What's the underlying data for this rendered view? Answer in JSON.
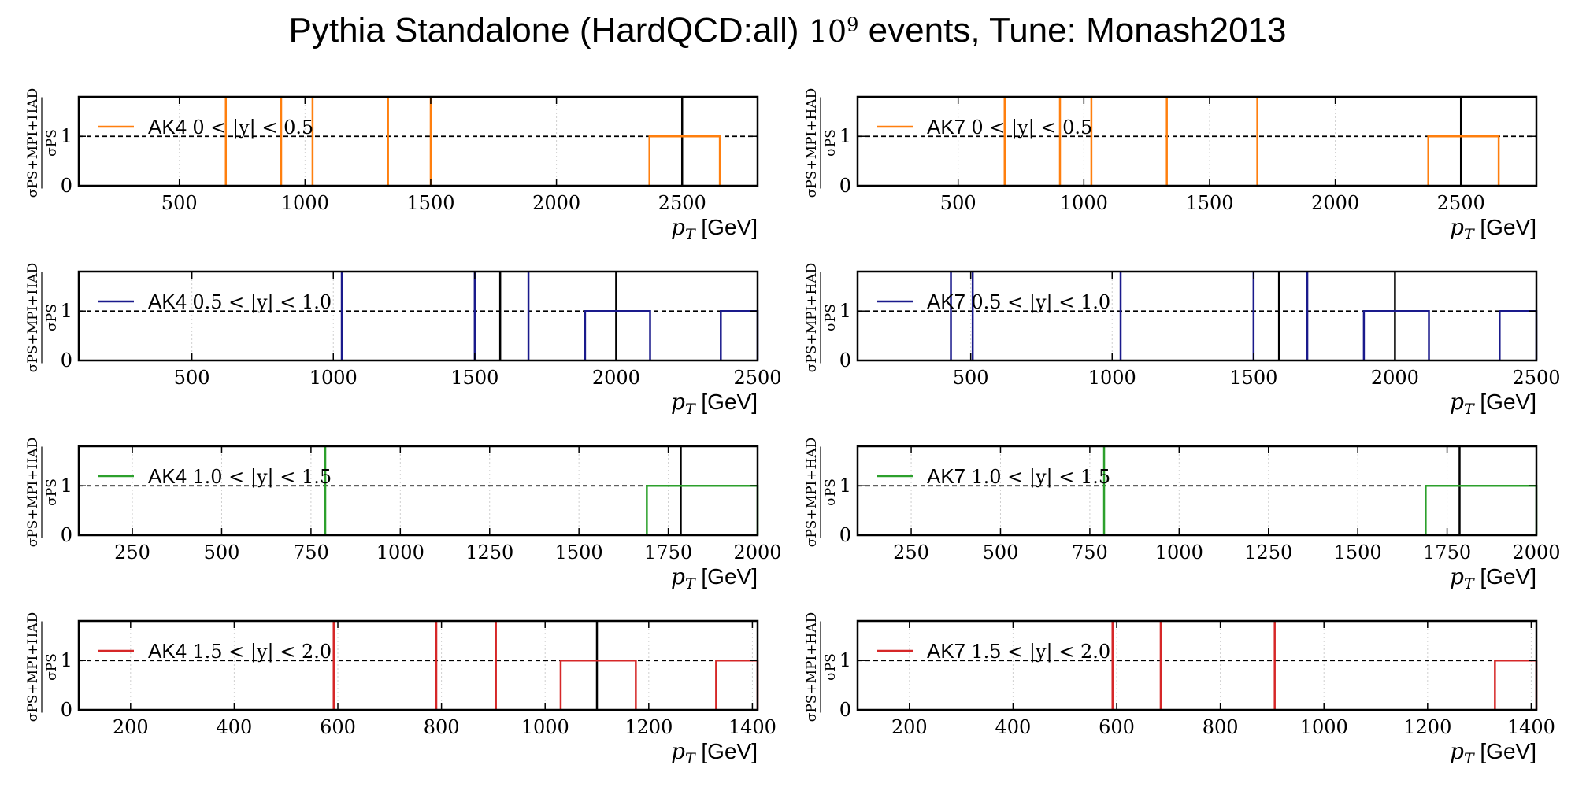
{
  "title": {
    "prefix": "Pythia Standalone (HardQCD:all) ",
    "events_base": "10",
    "events_exp": "9",
    "suffix": " events, Tune: Monash2013"
  },
  "colors": {
    "orange": "#ff7f0e",
    "navy": "#1a1a8c",
    "green": "#2ca02c",
    "red": "#d62728",
    "black": "#000000"
  },
  "ylabel": {
    "numerator": "σPS+MPI+HAD",
    "denominator": "σPS"
  },
  "xlabel": {
    "var": "pT",
    "unit": "[GeV]"
  },
  "chart_data": [
    {
      "type": "line",
      "algo": "AK4",
      "rapidity": "0 < |y| < 0.5",
      "color": "orange",
      "xlim": [
        100,
        2800
      ],
      "ylim": [
        0,
        1.8
      ],
      "xticks": [
        500,
        1000,
        1500,
        2000,
        2500
      ],
      "yticks": [
        0,
        1
      ],
      "spikes": [
        685,
        905,
        1030,
        1330,
        1500
      ],
      "steps": [
        [
          2370,
          2650
        ]
      ],
      "black_lines": [
        2500
      ],
      "ref": 1.0
    },
    {
      "type": "line",
      "algo": "AK7",
      "rapidity": "0 < |y| < 0.5",
      "color": "orange",
      "xlim": [
        100,
        2800
      ],
      "ylim": [
        0,
        1.8
      ],
      "xticks": [
        500,
        1000,
        1500,
        2000,
        2500
      ],
      "yticks": [
        0,
        1
      ],
      "spikes": [
        685,
        905,
        1030,
        1330,
        1690
      ],
      "steps": [
        [
          2370,
          2650
        ]
      ],
      "black_lines": [
        2500
      ],
      "ref": 1.0
    },
    {
      "type": "line",
      "algo": "AK4",
      "rapidity": "0.5 < |y| < 1.0",
      "color": "navy",
      "xlim": [
        100,
        2500
      ],
      "ylim": [
        0,
        1.8
      ],
      "xticks": [
        500,
        1000,
        1500,
        2000,
        2500
      ],
      "yticks": [
        0,
        1
      ],
      "spikes": [
        1030,
        1500,
        1690
      ],
      "steps": [
        [
          1890,
          2120
        ],
        [
          2370,
          2500
        ]
      ],
      "black_lines": [
        1590,
        2000
      ],
      "ref": 1.0
    },
    {
      "type": "line",
      "algo": "AK7",
      "rapidity": "0.5 < |y| < 1.0",
      "color": "navy",
      "xlim": [
        100,
        2500
      ],
      "ylim": [
        0,
        1.8
      ],
      "xticks": [
        500,
        1000,
        1500,
        2000,
        2500
      ],
      "yticks": [
        0,
        1
      ],
      "spikes": [
        430,
        507,
        1030,
        1500,
        1690
      ],
      "steps": [
        [
          1890,
          2120
        ],
        [
          2370,
          2500
        ]
      ],
      "black_lines": [
        1590,
        2000
      ],
      "ref": 1.0
    },
    {
      "type": "line",
      "algo": "AK4",
      "rapidity": "1.0 < |y| < 1.5",
      "color": "green",
      "xlim": [
        100,
        2000
      ],
      "ylim": [
        0,
        1.8
      ],
      "xticks": [
        250,
        500,
        750,
        1000,
        1250,
        1500,
        1750,
        2000
      ],
      "yticks": [
        0,
        1
      ],
      "spikes": [
        790
      ],
      "steps": [
        [
          1690,
          2000
        ]
      ],
      "black_lines": [
        1785
      ],
      "ref": 1.0
    },
    {
      "type": "line",
      "algo": "AK7",
      "rapidity": "1.0 < |y| < 1.5",
      "color": "green",
      "xlim": [
        100,
        2000
      ],
      "ylim": [
        0,
        1.8
      ],
      "xticks": [
        250,
        500,
        750,
        1000,
        1250,
        1500,
        1750,
        2000
      ],
      "yticks": [
        0,
        1
      ],
      "spikes": [
        790
      ],
      "steps": [
        [
          1690,
          2000
        ]
      ],
      "black_lines": [
        1785
      ],
      "ref": 1.0
    },
    {
      "type": "line",
      "algo": "AK4",
      "rapidity": "1.5 < |y| < 2.0",
      "color": "red",
      "xlim": [
        100,
        1410
      ],
      "ylim": [
        0,
        1.8
      ],
      "xticks": [
        200,
        400,
        600,
        800,
        1000,
        1200,
        1400
      ],
      "yticks": [
        0,
        1
      ],
      "spikes": [
        592,
        790,
        905
      ],
      "steps": [
        [
          1030,
          1175
        ],
        [
          1330,
          1410
        ]
      ],
      "black_lines": [
        1100
      ],
      "ref": 1.0
    },
    {
      "type": "line",
      "algo": "AK7",
      "rapidity": "1.5 < |y| < 2.0",
      "color": "red",
      "xlim": [
        100,
        1410
      ],
      "ylim": [
        0,
        1.8
      ],
      "xticks": [
        200,
        400,
        600,
        800,
        1000,
        1200,
        1400
      ],
      "yticks": [
        0,
        1
      ],
      "spikes": [
        592,
        685,
        905
      ],
      "steps": [
        [
          1330,
          1410
        ]
      ],
      "black_lines": [],
      "ref": 1.0
    }
  ]
}
